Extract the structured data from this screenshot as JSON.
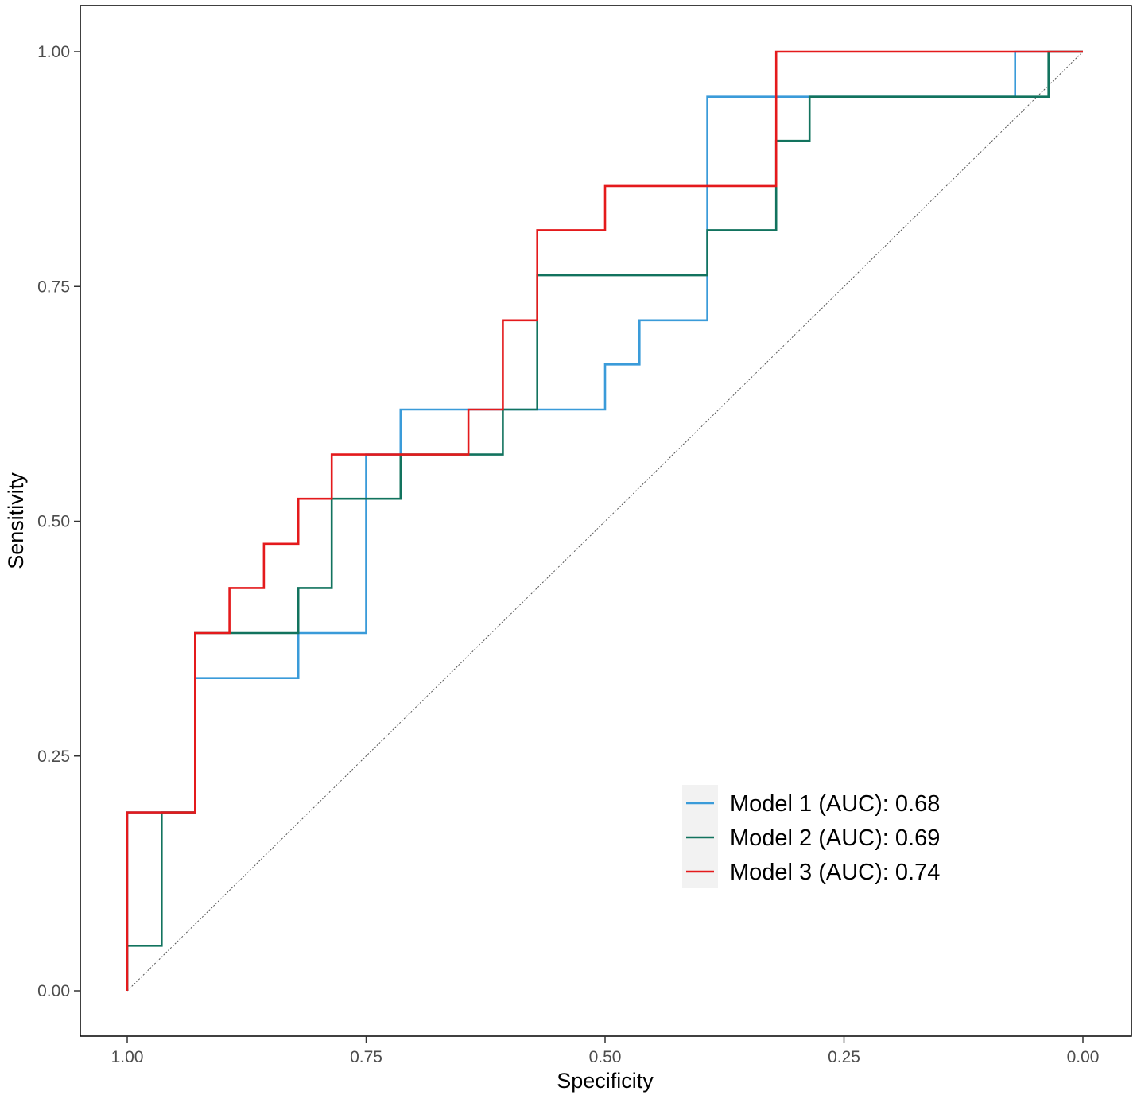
{
  "chart_data": {
    "type": "line",
    "title": "",
    "xlabel": "Specificity",
    "ylabel": "Sensitivity",
    "xlim": [
      1.0,
      0.0
    ],
    "ylim": [
      0.0,
      1.0
    ],
    "x_reversed": true,
    "grid": false,
    "x_ticks": [
      {
        "value": 1.0,
        "label": "1.00"
      },
      {
        "value": 0.75,
        "label": "0.75"
      },
      {
        "value": 0.5,
        "label": "0.50"
      },
      {
        "value": 0.25,
        "label": "0.25"
      },
      {
        "value": 0.0,
        "label": "0.00"
      }
    ],
    "y_ticks": [
      {
        "value": 0.0,
        "label": "0.00"
      },
      {
        "value": 0.25,
        "label": "0.25"
      },
      {
        "value": 0.5,
        "label": "0.50"
      },
      {
        "value": 0.75,
        "label": "0.75"
      },
      {
        "value": 1.0,
        "label": "1.00"
      }
    ],
    "reference_line": {
      "from": [
        1.0,
        0.0
      ],
      "to": [
        0.0,
        1.0
      ],
      "style": "dotted",
      "color": "#555555"
    },
    "legend_position": "bottom-right",
    "series": [
      {
        "name": "Model 1 (AUC): 0.68",
        "color": "#3a9bd9",
        "points": [
          [
            1.0,
            0.0
          ],
          [
            1.0,
            0.19
          ],
          [
            0.929,
            0.19
          ],
          [
            0.929,
            0.333
          ],
          [
            0.821,
            0.333
          ],
          [
            0.821,
            0.381
          ],
          [
            0.75,
            0.381
          ],
          [
            0.75,
            0.571
          ],
          [
            0.714,
            0.571
          ],
          [
            0.714,
            0.619
          ],
          [
            0.5,
            0.619
          ],
          [
            0.5,
            0.667
          ],
          [
            0.464,
            0.667
          ],
          [
            0.464,
            0.714
          ],
          [
            0.393,
            0.714
          ],
          [
            0.393,
            0.952
          ],
          [
            0.071,
            0.952
          ],
          [
            0.071,
            1.0
          ],
          [
            0.0,
            1.0
          ]
        ]
      },
      {
        "name": "Model 2 (AUC): 0.69",
        "color": "#12735e",
        "points": [
          [
            1.0,
            0.0
          ],
          [
            1.0,
            0.048
          ],
          [
            0.964,
            0.048
          ],
          [
            0.964,
            0.19
          ],
          [
            0.929,
            0.19
          ],
          [
            0.929,
            0.381
          ],
          [
            0.821,
            0.381
          ],
          [
            0.821,
            0.429
          ],
          [
            0.786,
            0.429
          ],
          [
            0.786,
            0.524
          ],
          [
            0.714,
            0.524
          ],
          [
            0.714,
            0.571
          ],
          [
            0.607,
            0.571
          ],
          [
            0.607,
            0.619
          ],
          [
            0.571,
            0.619
          ],
          [
            0.571,
            0.762
          ],
          [
            0.393,
            0.762
          ],
          [
            0.393,
            0.81
          ],
          [
            0.321,
            0.81
          ],
          [
            0.321,
            0.905
          ],
          [
            0.286,
            0.905
          ],
          [
            0.286,
            0.952
          ],
          [
            0.036,
            0.952
          ],
          [
            0.036,
            1.0
          ],
          [
            0.0,
            1.0
          ]
        ]
      },
      {
        "name": "Model 3 (AUC): 0.74",
        "color": "#e41a1c",
        "points": [
          [
            1.0,
            0.0
          ],
          [
            1.0,
            0.19
          ],
          [
            0.929,
            0.19
          ],
          [
            0.929,
            0.381
          ],
          [
            0.893,
            0.381
          ],
          [
            0.893,
            0.429
          ],
          [
            0.857,
            0.429
          ],
          [
            0.857,
            0.476
          ],
          [
            0.821,
            0.476
          ],
          [
            0.821,
            0.524
          ],
          [
            0.786,
            0.524
          ],
          [
            0.786,
            0.571
          ],
          [
            0.643,
            0.571
          ],
          [
            0.643,
            0.619
          ],
          [
            0.607,
            0.619
          ],
          [
            0.607,
            0.714
          ],
          [
            0.571,
            0.714
          ],
          [
            0.571,
            0.81
          ],
          [
            0.5,
            0.81
          ],
          [
            0.5,
            0.857
          ],
          [
            0.321,
            0.857
          ],
          [
            0.321,
            1.0
          ],
          [
            0.0,
            1.0
          ]
        ]
      }
    ]
  }
}
